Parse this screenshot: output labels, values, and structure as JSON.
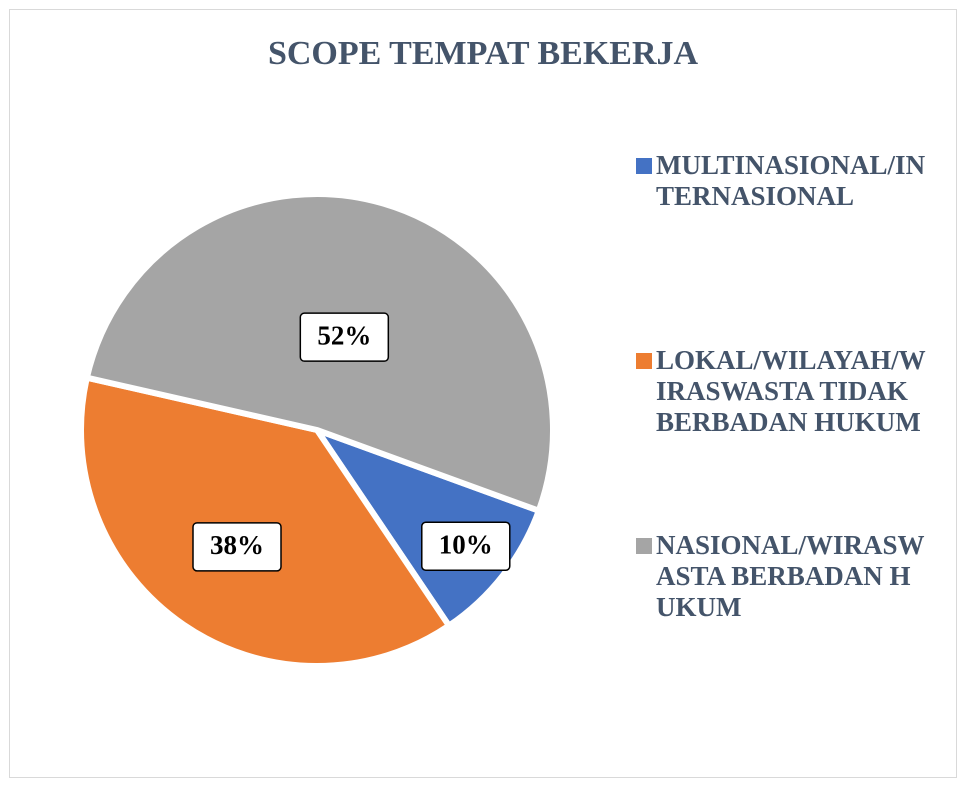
{
  "chart_data": {
    "type": "pie",
    "title": "SCOPE TEMPAT BEKERJA",
    "categories": [
      "MULTINASIONAL/INTERNASIONAL",
      "LOKAL/WILAYAH/WIRASWASTA TIDAK BERBADAN HUKUM",
      "NASIONAL/WIRASWASTA BERBADAN HUKUM"
    ],
    "values": [
      10,
      38,
      52
    ],
    "value_labels": [
      "10%",
      "38%",
      "52%"
    ],
    "colors": [
      "#4472c4",
      "#ed7d31",
      "#a5a5a5"
    ],
    "legend": "right"
  }
}
